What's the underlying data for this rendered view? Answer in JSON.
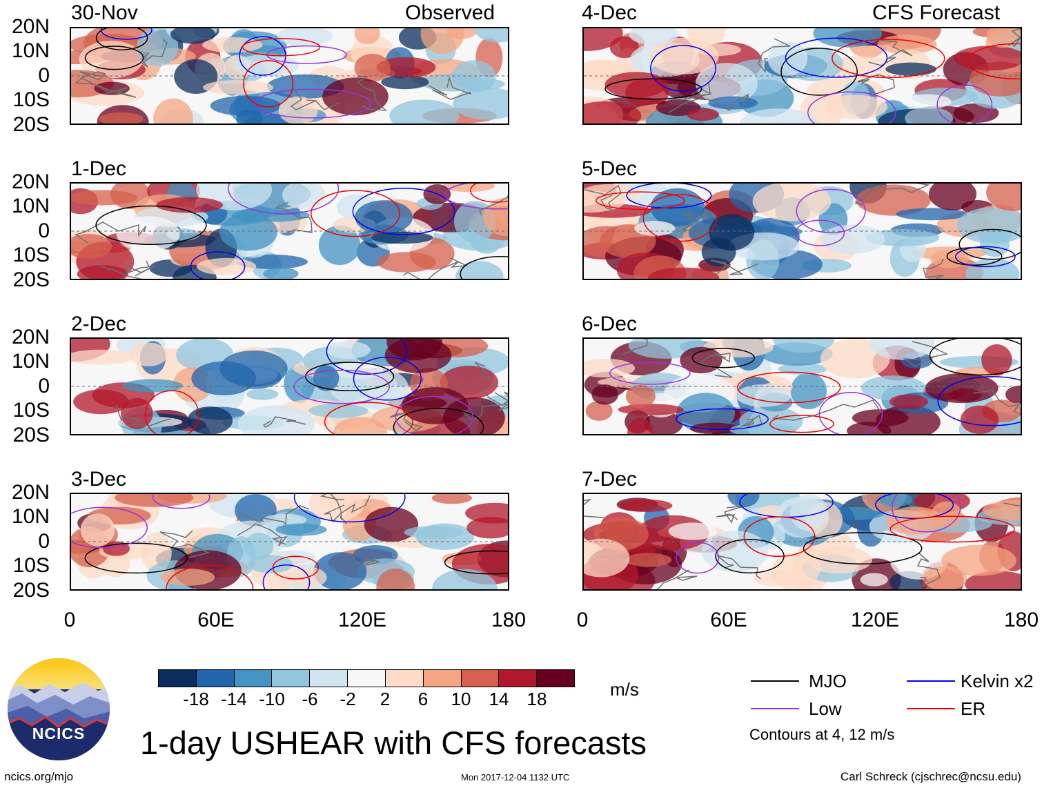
{
  "header": {
    "left_mode": "Observed",
    "right_mode": "CFS Forecast"
  },
  "panels": [
    {
      "date": "30-Nov",
      "column": "observed",
      "row": 0
    },
    {
      "date": "1-Dec",
      "column": "observed",
      "row": 1
    },
    {
      "date": "2-Dec",
      "column": "observed",
      "row": 2
    },
    {
      "date": "3-Dec",
      "column": "observed",
      "row": 3
    },
    {
      "date": "4-Dec",
      "column": "forecast",
      "row": 0
    },
    {
      "date": "5-Dec",
      "column": "forecast",
      "row": 1
    },
    {
      "date": "6-Dec",
      "column": "forecast",
      "row": 2
    },
    {
      "date": "7-Dec",
      "column": "forecast",
      "row": 3
    }
  ],
  "lat_labels": [
    "20N",
    "10N",
    "0",
    "10S",
    "20S"
  ],
  "lon_labels": [
    "0",
    "60E",
    "120E",
    "180"
  ],
  "colorbar": {
    "colors": [
      "#0b2d5e",
      "#2166ac",
      "#4393c3",
      "#92c5de",
      "#d1e5f0",
      "#f7f7f7",
      "#fddbc7",
      "#f4a582",
      "#d6604d",
      "#b2182b",
      "#67001f"
    ],
    "ticks": [
      "-18",
      "-14",
      "-10",
      "-6",
      "-2",
      "2",
      "6",
      "10",
      "14",
      "18"
    ],
    "units": "m/s"
  },
  "legend": {
    "items": [
      {
        "label": "MJO",
        "color": "#000000"
      },
      {
        "label": "Kelvin x2",
        "color": "#0000ee"
      },
      {
        "label": "Low",
        "color": "#9933dd"
      },
      {
        "label": "ER",
        "color": "#ee0000"
      }
    ],
    "note": "Contours at 4, 12 m/s"
  },
  "logo": {
    "text": "NCICS"
  },
  "title": "1-day USHEAR with CFS forecasts",
  "footer": {
    "website": "ncics.org/mjo",
    "timestamp": "Mon 2017-12-04 1132 UTC",
    "credit": "Carl Schreck (cjschrec@ncsu.edu)"
  }
}
